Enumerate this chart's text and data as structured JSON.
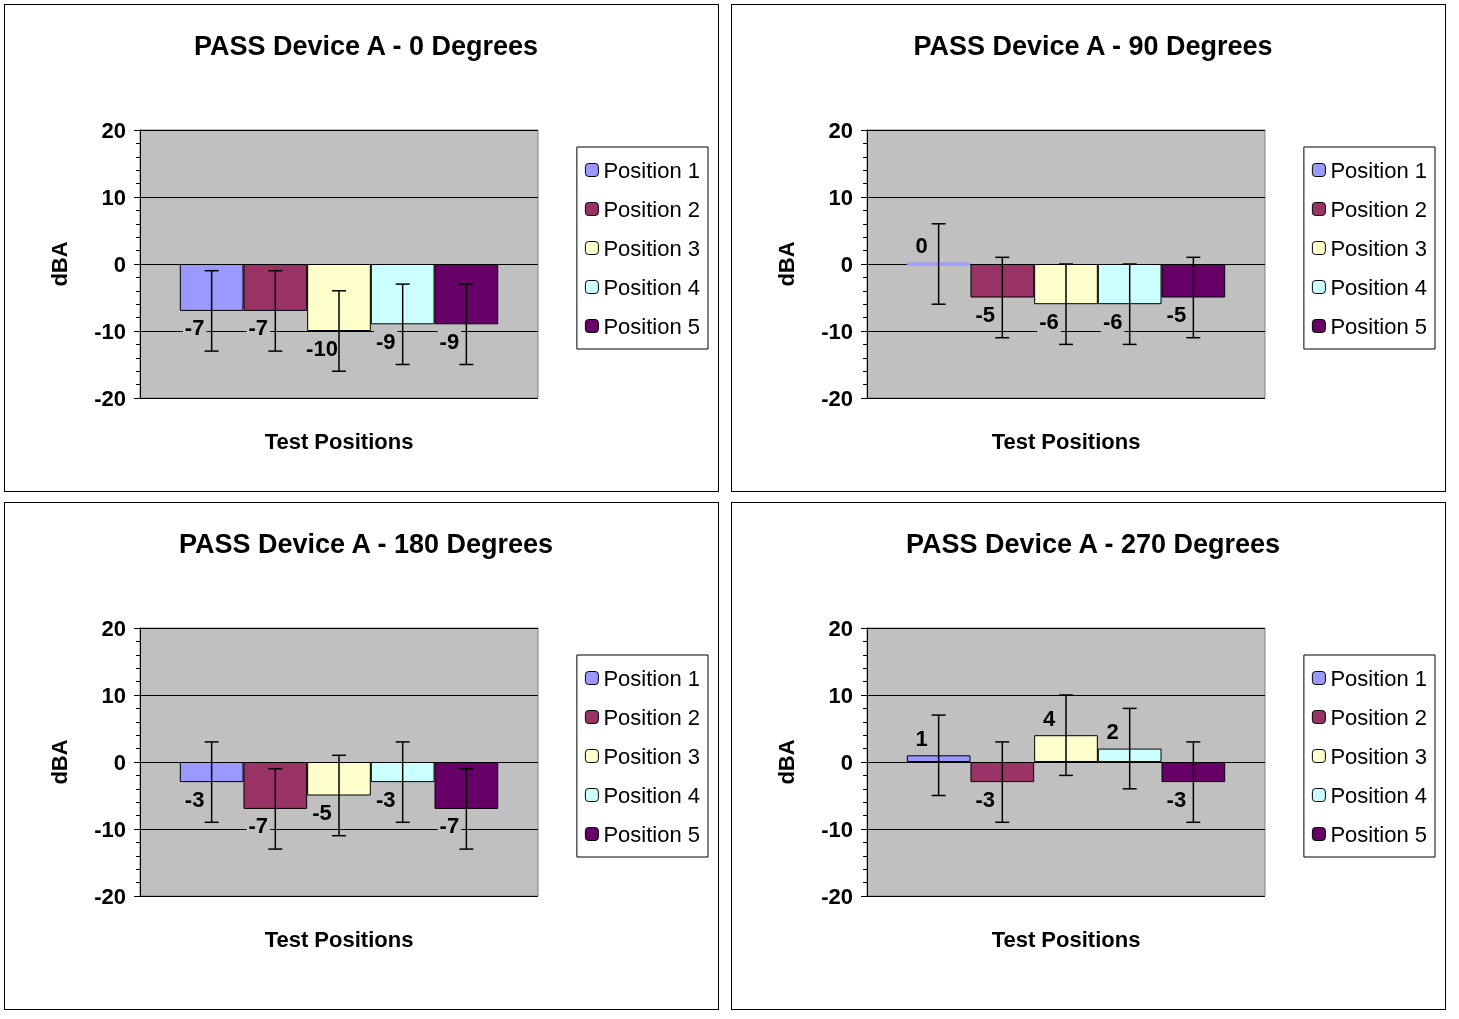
{
  "chart_data": [
    {
      "type": "bar",
      "title": "PASS Device A - 0 Degrees",
      "xlabel": "Test Positions",
      "ylabel": "dBA",
      "categories": [
        null
      ],
      "ylim": [
        -20,
        20
      ],
      "yticks": [
        -20,
        -10,
        0,
        10,
        20
      ],
      "grid": "y",
      "legend": "right",
      "data_labels": true,
      "series": [
        {
          "name": "Position 1",
          "color": "#9999ff",
          "values": [
            -7
          ],
          "errors": [
            6
          ]
        },
        {
          "name": "Position 2",
          "color": "#993366",
          "values": [
            -7
          ],
          "errors": [
            6
          ]
        },
        {
          "name": "Position 3",
          "color": "#ffffcc",
          "values": [
            -10
          ],
          "errors": [
            6
          ]
        },
        {
          "name": "Position 4",
          "color": "#ccffff",
          "values": [
            -9
          ],
          "errors": [
            6
          ]
        },
        {
          "name": "Position 5",
          "color": "#660066",
          "values": [
            -9
          ],
          "errors": [
            6
          ]
        }
      ]
    },
    {
      "type": "bar",
      "title": "PASS Device A - 90 Degrees",
      "xlabel": "Test Positions",
      "ylabel": "dBA",
      "categories": [
        null
      ],
      "ylim": [
        -20,
        20
      ],
      "yticks": [
        -20,
        -10,
        0,
        10,
        20
      ],
      "grid": "y",
      "legend": "right",
      "data_labels": true,
      "series": [
        {
          "name": "Position 1",
          "color": "#9999ff",
          "values": [
            0
          ],
          "errors": [
            6
          ]
        },
        {
          "name": "Position 2",
          "color": "#993366",
          "values": [
            -5
          ],
          "errors": [
            6
          ]
        },
        {
          "name": "Position 3",
          "color": "#ffffcc",
          "values": [
            -6
          ],
          "errors": [
            6
          ]
        },
        {
          "name": "Position 4",
          "color": "#ccffff",
          "values": [
            -6
          ],
          "errors": [
            6
          ]
        },
        {
          "name": "Position 5",
          "color": "#660066",
          "values": [
            -5
          ],
          "errors": [
            6
          ]
        }
      ]
    },
    {
      "type": "bar",
      "title": "PASS Device A - 180 Degrees",
      "xlabel": "Test Positions",
      "ylabel": "dBA",
      "categories": [
        null
      ],
      "ylim": [
        -20,
        20
      ],
      "yticks": [
        -20,
        -10,
        0,
        10,
        20
      ],
      "grid": "y",
      "legend": "right",
      "data_labels": true,
      "series": [
        {
          "name": "Position 1",
          "color": "#9999ff",
          "values": [
            -3
          ],
          "errors": [
            6
          ]
        },
        {
          "name": "Position 2",
          "color": "#993366",
          "values": [
            -7
          ],
          "errors": [
            6
          ]
        },
        {
          "name": "Position 3",
          "color": "#ffffcc",
          "values": [
            -5
          ],
          "errors": [
            6
          ]
        },
        {
          "name": "Position 4",
          "color": "#ccffff",
          "values": [
            -3
          ],
          "errors": [
            6
          ]
        },
        {
          "name": "Position 5",
          "color": "#660066",
          "values": [
            -7
          ],
          "errors": [
            6
          ]
        }
      ]
    },
    {
      "type": "bar",
      "title": "PASS Device A - 270 Degrees",
      "xlabel": "Test Positions",
      "ylabel": "dBA",
      "categories": [
        null
      ],
      "ylim": [
        -20,
        20
      ],
      "yticks": [
        -20,
        -10,
        0,
        10,
        20
      ],
      "grid": "y",
      "legend": "right",
      "data_labels": true,
      "series": [
        {
          "name": "Position 1",
          "color": "#9999ff",
          "values": [
            1
          ],
          "errors": [
            6
          ]
        },
        {
          "name": "Position 2",
          "color": "#993366",
          "values": [
            -3
          ],
          "errors": [
            6
          ]
        },
        {
          "name": "Position 3",
          "color": "#ffffcc",
          "values": [
            4
          ],
          "errors": [
            6
          ]
        },
        {
          "name": "Position 4",
          "color": "#ccffff",
          "values": [
            2
          ],
          "errors": [
            6
          ]
        },
        {
          "name": "Position 5",
          "color": "#660066",
          "values": [
            -3
          ],
          "errors": [
            6
          ]
        }
      ]
    }
  ]
}
